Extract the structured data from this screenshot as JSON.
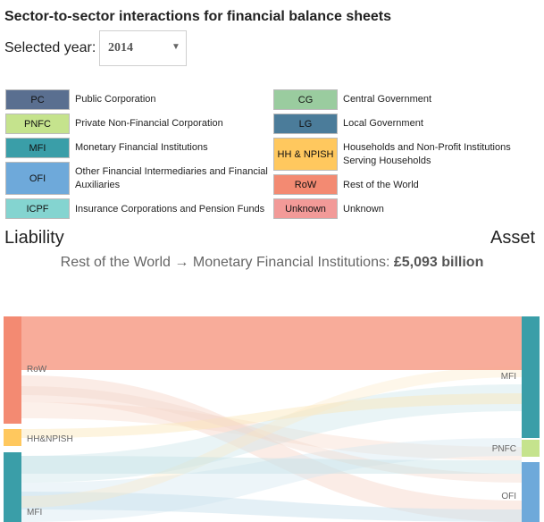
{
  "title": "Sector-to-sector interactions for financial balance sheets",
  "year_label": "Selected year:",
  "year_selected": "2014",
  "legend": [
    {
      "code": "PC",
      "name": "Public Corporation",
      "color": "#5a6f90"
    },
    {
      "code": "PNFC",
      "name": "Private Non-Financial Corporation",
      "color": "#c5e38d"
    },
    {
      "code": "MFI",
      "name": "Monetary Financial Institutions",
      "color": "#3a9ea8"
    },
    {
      "code": "OFI",
      "name": "Other Financial Intermediaries and Financial Auxiliaries",
      "color": "#6ea9da"
    },
    {
      "code": "ICPF",
      "name": "Insurance Corporations and Pension Funds",
      "color": "#84d4d0"
    },
    {
      "code": "CG",
      "name": "Central Government",
      "color": "#9acc9f"
    },
    {
      "code": "LG",
      "name": "Local Government",
      "color": "#4b7c9a"
    },
    {
      "code": "HH & NPISH",
      "name": "Households and Non-Profit Institutions Serving Households",
      "color": "#ffc85e"
    },
    {
      "code": "RoW",
      "name": "Rest of the World",
      "color": "#f38a72"
    },
    {
      "code": "Unknown",
      "name": "Unknown",
      "color": "#f29a98"
    }
  ],
  "liability_label": "Liability",
  "asset_label": "Asset",
  "flow_caption": {
    "source": "Rest of the World",
    "arrow": "→",
    "target": "Monetary Financial Institutions:",
    "value": "£5,093 billion"
  },
  "sankey": {
    "liability_nodes": [
      {
        "label": "RoW",
        "color": "#f38a72"
      },
      {
        "label": "HH&NPISH",
        "color": "#ffc85e"
      },
      {
        "label": "MFI",
        "color": "#3a9ea8"
      }
    ],
    "asset_nodes": [
      {
        "label": "MFI",
        "color": "#3a9ea8"
      },
      {
        "label": "PNFC",
        "color": "#c5e38d"
      },
      {
        "label": "OFI",
        "color": "#6ea9da"
      }
    ],
    "highlight_flow": {
      "from": "RoW",
      "to": "MFI",
      "value_billion": 5093
    }
  }
}
